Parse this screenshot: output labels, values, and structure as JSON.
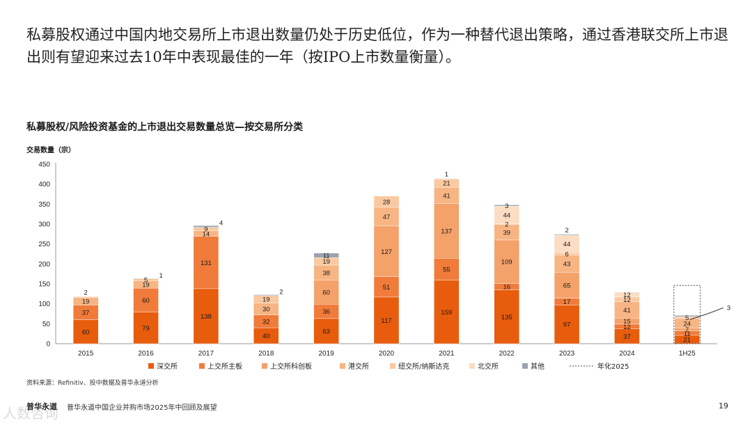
{
  "headline": "私募股权通过中国内地交易所上市退出数量仍处于历史低位，作为一种替代退出策略，通过香港联交所上市退出则有望迎来过去10年中表现最佳的一年（按IPO上市数量衡量）。",
  "source": "资料来源：Refinitiv、投中数据及普华永道分析",
  "footer": {
    "logo": "普华永道",
    "text": "普华永道中国企业并购市场2025年中回顾及展望",
    "page": "19",
    "watermark": "人数咨询"
  },
  "chart_data": {
    "type": "bar",
    "stacked": true,
    "title": "私募股权/风险投资基金的上市退出交易数量总览—按交易所分类",
    "ylabel": "交易数量（宗）",
    "ylim": [
      0,
      450
    ],
    "yticks": [
      0,
      50,
      100,
      150,
      200,
      250,
      300,
      350,
      400,
      450
    ],
    "categories": [
      "2015",
      "2016",
      "2017",
      "2018",
      "2019",
      "2020",
      "2021",
      "2022",
      "2023",
      "2024",
      "1H25"
    ],
    "series": [
      {
        "name": "深交所",
        "color": "#e85c0d",
        "values": [
          60,
          79,
          138,
          40,
          63,
          117,
          159,
          135,
          97,
          37,
          21
        ]
      },
      {
        "name": "上交所主板",
        "color": "#f07b3a",
        "values": [
          37,
          60,
          131,
          32,
          36,
          51,
          55,
          16,
          17,
          12,
          11
        ]
      },
      {
        "name": "上交所科创板",
        "color": "#f4a16a",
        "values": [
          0,
          0,
          0,
          0,
          60,
          127,
          137,
          109,
          65,
          15,
          7
        ]
      },
      {
        "name": "港交所",
        "color": "#f7b583",
        "values": [
          19,
          19,
          14,
          30,
          38,
          47,
          41,
          39,
          43,
          41,
          24
        ]
      },
      {
        "name": "纽交所/纳斯达克",
        "color": "#f9c9a1",
        "values": [
          2,
          5,
          9,
          19,
          19,
          28,
          21,
          2,
          6,
          12,
          5
        ]
      },
      {
        "name": "北交所",
        "color": "#fbddc3",
        "values": [
          0,
          0,
          0,
          0,
          0,
          0,
          0,
          44,
          44,
          12,
          0
        ]
      },
      {
        "name": "其他",
        "color": "#9aa3ad",
        "values": [
          0,
          1,
          4,
          2,
          11,
          0,
          1,
          3,
          2,
          0,
          3
        ]
      }
    ],
    "annualized": {
      "name": "年化2025",
      "category": "1H25",
      "value": 146
    },
    "labels": [
      [
        {
          "s": 0,
          "t": "60"
        },
        {
          "s": 1,
          "t": "37"
        },
        {
          "s": 3,
          "t": "19"
        },
        {
          "s": 4,
          "t": "2",
          "pos": "top"
        }
      ],
      [
        {
          "s": 0,
          "t": "79"
        },
        {
          "s": 1,
          "t": "60"
        },
        {
          "s": 3,
          "t": "19"
        },
        {
          "s": 4,
          "t": "5"
        },
        {
          "s": 6,
          "t": "1",
          "pos": "right"
        }
      ],
      [
        {
          "s": 0,
          "t": "138"
        },
        {
          "s": 1,
          "t": "131"
        },
        {
          "s": 3,
          "t": "14"
        },
        {
          "s": 4,
          "t": "9"
        },
        {
          "s": 6,
          "t": "4",
          "pos": "right"
        }
      ],
      [
        {
          "s": 0,
          "t": "40"
        },
        {
          "s": 1,
          "t": "32"
        },
        {
          "s": 3,
          "t": "30"
        },
        {
          "s": 4,
          "t": "19"
        },
        {
          "s": 6,
          "t": "2",
          "pos": "right"
        }
      ],
      [
        {
          "s": 0,
          "t": "63"
        },
        {
          "s": 1,
          "t": "36"
        },
        {
          "s": 2,
          "t": "60"
        },
        {
          "s": 3,
          "t": "38"
        },
        {
          "s": 4,
          "t": "19"
        },
        {
          "s": 6,
          "t": "11"
        }
      ],
      [
        {
          "s": 0,
          "t": "117"
        },
        {
          "s": 1,
          "t": "51"
        },
        {
          "s": 2,
          "t": "127"
        },
        {
          "s": 3,
          "t": "47"
        },
        {
          "s": 4,
          "t": "28"
        }
      ],
      [
        {
          "s": 0,
          "t": "159"
        },
        {
          "s": 1,
          "t": "55"
        },
        {
          "s": 2,
          "t": "137"
        },
        {
          "s": 3,
          "t": "41"
        },
        {
          "s": 4,
          "t": "21"
        },
        {
          "s": 6,
          "t": "1",
          "pos": "top"
        }
      ],
      [
        {
          "s": 0,
          "t": "135"
        },
        {
          "s": 1,
          "t": "16"
        },
        {
          "s": 2,
          "t": "109"
        },
        {
          "s": 3,
          "t": "39"
        },
        {
          "s": 4,
          "t": "2"
        },
        {
          "s": 5,
          "t": "44"
        },
        {
          "s": 6,
          "t": "3"
        }
      ],
      [
        {
          "s": 0,
          "t": "97"
        },
        {
          "s": 1,
          "t": "17"
        },
        {
          "s": 2,
          "t": "65"
        },
        {
          "s": 3,
          "t": "43"
        },
        {
          "s": 4,
          "t": "6"
        },
        {
          "s": 5,
          "t": "44"
        },
        {
          "s": 6,
          "t": "2",
          "pos": "top"
        }
      ],
      [
        {
          "s": 0,
          "t": "37"
        },
        {
          "s": 1,
          "t": "12"
        },
        {
          "s": 2,
          "t": "15"
        },
        {
          "s": 3,
          "t": "41"
        },
        {
          "s": 4,
          "t": "12"
        },
        {
          "s": 5,
          "t": "12"
        }
      ],
      [
        {
          "s": 0,
          "t": "21"
        },
        {
          "s": 1,
          "t": "11"
        },
        {
          "s": 2,
          "t": "7"
        },
        {
          "s": 3,
          "t": "24"
        },
        {
          "s": 4,
          "t": "5"
        },
        {
          "s": 6,
          "t": "3",
          "pos": "callout"
        }
      ]
    ]
  }
}
